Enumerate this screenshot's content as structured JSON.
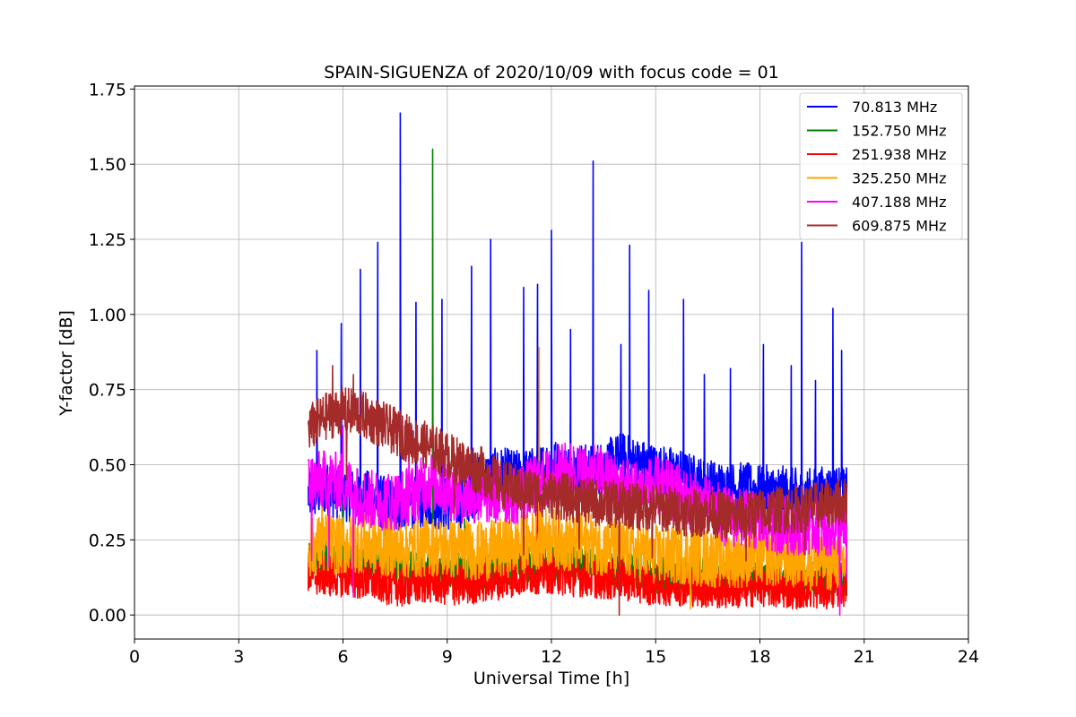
{
  "chart_data": {
    "type": "line",
    "title": "SPAIN-SIGUENZA of 2020/10/09 with focus code = 01",
    "xlabel": "Universal Time [h]",
    "ylabel": "Y-factor [dB]",
    "xlim": [
      0,
      24
    ],
    "ylim": [
      -0.08,
      1.76
    ],
    "x_ticks": [
      "0",
      "3",
      "6",
      "9",
      "12",
      "15",
      "18",
      "21",
      "24"
    ],
    "y_ticks": [
      "0.00",
      "0.25",
      "0.50",
      "0.75",
      "1.00",
      "1.25",
      "1.50",
      "1.75"
    ],
    "grid": true,
    "legend_position": "top-right",
    "series": [
      {
        "name": " 70.813 MHz",
        "color": "#0000ff",
        "x": [
          5.0,
          5.5,
          6.0,
          6.5,
          7.0,
          7.5,
          8.0,
          8.5,
          9.0,
          9.5,
          10.0,
          10.5,
          11.0,
          11.5,
          12.0,
          12.5,
          13.0,
          13.5,
          14.0,
          14.5,
          15.0,
          15.5,
          16.0,
          16.5,
          17.0,
          17.5,
          18.0,
          18.5,
          19.0,
          19.5,
          20.0,
          20.5
        ],
        "y": [
          0.4,
          0.42,
          0.4,
          0.4,
          0.38,
          0.36,
          0.37,
          0.38,
          0.37,
          0.38,
          0.45,
          0.47,
          0.46,
          0.47,
          0.5,
          0.48,
          0.48,
          0.49,
          0.52,
          0.5,
          0.48,
          0.47,
          0.45,
          0.43,
          0.42,
          0.42,
          0.41,
          0.41,
          0.4,
          0.4,
          0.41,
          0.4
        ],
        "peaks": [
          [
            5.25,
            0.88
          ],
          [
            5.95,
            0.97
          ],
          [
            6.5,
            1.15
          ],
          [
            7.0,
            1.24
          ],
          [
            7.65,
            1.67
          ],
          [
            8.1,
            1.04
          ],
          [
            8.85,
            1.05
          ],
          [
            9.7,
            1.16
          ],
          [
            10.25,
            1.25
          ],
          [
            11.2,
            1.09
          ],
          [
            11.6,
            1.1
          ],
          [
            12.0,
            1.28
          ],
          [
            12.55,
            0.95
          ],
          [
            13.2,
            1.51
          ],
          [
            14.0,
            0.9
          ],
          [
            14.25,
            1.23
          ],
          [
            14.8,
            1.08
          ],
          [
            15.8,
            1.05
          ],
          [
            16.4,
            0.8
          ],
          [
            17.15,
            0.82
          ],
          [
            18.1,
            0.9
          ],
          [
            18.9,
            0.83
          ],
          [
            19.2,
            1.24
          ],
          [
            19.6,
            0.78
          ],
          [
            20.1,
            1.02
          ],
          [
            20.35,
            0.88
          ]
        ]
      },
      {
        "name": "152.750 MHz",
        "color": "#008000",
        "x": [
          5.0,
          5.5,
          6.0,
          6.5,
          7.0,
          7.5,
          8.0,
          8.5,
          9.0,
          9.5,
          10.0,
          10.5,
          11.0,
          11.5,
          12.0,
          12.5,
          13.0,
          13.5,
          14.0,
          14.5,
          15.0,
          15.5,
          16.0,
          16.5,
          17.0,
          17.5,
          18.0,
          18.5,
          19.0,
          19.5,
          20.0,
          20.5
        ],
        "y": [
          0.2,
          0.19,
          0.19,
          0.18,
          0.17,
          0.16,
          0.15,
          0.16,
          0.15,
          0.15,
          0.15,
          0.15,
          0.16,
          0.17,
          0.18,
          0.17,
          0.16,
          0.15,
          0.15,
          0.14,
          0.13,
          0.14,
          0.13,
          0.13,
          0.12,
          0.12,
          0.13,
          0.12,
          0.12,
          0.12,
          0.12,
          0.12
        ],
        "peaks": [
          [
            8.58,
            1.55
          ],
          [
            5.1,
            0.35
          ],
          [
            6.0,
            0.38
          ],
          [
            7.2,
            0.34
          ],
          [
            9.5,
            0.32
          ]
        ]
      },
      {
        "name": "251.938 MHz",
        "color": "#ff0000",
        "x": [
          5.0,
          5.5,
          6.0,
          6.5,
          7.0,
          7.5,
          8.0,
          8.5,
          9.0,
          9.5,
          10.0,
          10.5,
          11.0,
          11.5,
          12.0,
          12.5,
          13.0,
          13.5,
          14.0,
          14.5,
          15.0,
          15.5,
          16.0,
          16.5,
          17.0,
          17.5,
          18.0,
          18.5,
          19.0,
          19.5,
          20.0,
          20.5
        ],
        "y": [
          0.14,
          0.13,
          0.13,
          0.12,
          0.11,
          0.1,
          0.1,
          0.11,
          0.1,
          0.1,
          0.11,
          0.12,
          0.13,
          0.14,
          0.14,
          0.13,
          0.13,
          0.12,
          0.12,
          0.11,
          0.1,
          0.1,
          0.1,
          0.09,
          0.09,
          0.09,
          0.1,
          0.09,
          0.09,
          0.09,
          0.09,
          0.1
        ],
        "peaks": [
          [
            5.0,
            0.08
          ],
          [
            7.7,
            0.03
          ],
          [
            11.6,
            0.4
          ],
          [
            12.2,
            0.33
          ],
          [
            17.6,
            0.05
          ]
        ]
      },
      {
        "name": "325.250 MHz",
        "color": "#ffa500",
        "x": [
          5.0,
          5.5,
          6.0,
          6.5,
          7.0,
          7.5,
          8.0,
          8.5,
          9.0,
          9.5,
          10.0,
          10.5,
          11.0,
          11.5,
          12.0,
          12.5,
          13.0,
          13.5,
          14.0,
          14.5,
          15.0,
          15.5,
          16.0,
          16.5,
          17.0,
          17.5,
          18.0,
          18.5,
          19.0,
          19.5,
          20.0,
          20.5
        ],
        "y": [
          0.22,
          0.24,
          0.23,
          0.24,
          0.23,
          0.22,
          0.22,
          0.23,
          0.22,
          0.22,
          0.21,
          0.22,
          0.23,
          0.25,
          0.26,
          0.24,
          0.24,
          0.23,
          0.22,
          0.21,
          0.2,
          0.2,
          0.2,
          0.19,
          0.19,
          0.19,
          0.2,
          0.19,
          0.19,
          0.18,
          0.18,
          0.18
        ],
        "peaks": [
          [
            11.65,
            0.89
          ],
          [
            5.4,
            0.44
          ],
          [
            13.0,
            0.38
          ],
          [
            16.0,
            0.02
          ]
        ]
      },
      {
        "name": "407.188 MHz",
        "color": "#ff00ff",
        "x": [
          5.0,
          5.5,
          6.0,
          6.5,
          7.0,
          7.5,
          8.0,
          8.5,
          9.0,
          9.5,
          10.0,
          10.5,
          11.0,
          11.5,
          12.0,
          12.5,
          13.0,
          13.5,
          14.0,
          14.5,
          15.0,
          15.5,
          16.0,
          16.5,
          17.0,
          17.5,
          18.0,
          18.5,
          19.0,
          19.5,
          20.0,
          20.5
        ],
        "y": [
          0.44,
          0.45,
          0.44,
          0.39,
          0.38,
          0.38,
          0.4,
          0.45,
          0.42,
          0.4,
          0.4,
          0.4,
          0.4,
          0.43,
          0.46,
          0.48,
          0.47,
          0.46,
          0.43,
          0.42,
          0.43,
          0.41,
          0.38,
          0.36,
          0.33,
          0.32,
          0.31,
          0.3,
          0.3,
          0.3,
          0.29,
          0.3
        ],
        "peaks": [
          [
            5.1,
            0.18
          ],
          [
            5.6,
            0.16
          ],
          [
            6.3,
            0.06
          ],
          [
            6.0,
            0.63
          ],
          [
            7.9,
            0.58
          ],
          [
            20.3,
            0.0
          ],
          [
            20.5,
            0.12
          ]
        ]
      },
      {
        "name": "609.875 MHz",
        "color": "#a52a2a",
        "x": [
          5.0,
          5.5,
          6.0,
          6.5,
          7.0,
          7.5,
          8.0,
          8.5,
          9.0,
          9.5,
          10.0,
          10.5,
          11.0,
          11.5,
          12.0,
          12.5,
          13.0,
          13.5,
          14.0,
          14.5,
          15.0,
          15.5,
          16.0,
          16.5,
          17.0,
          17.5,
          18.0,
          18.5,
          19.0,
          19.5,
          20.0,
          20.5
        ],
        "y": [
          0.62,
          0.66,
          0.68,
          0.67,
          0.64,
          0.61,
          0.58,
          0.56,
          0.53,
          0.5,
          0.48,
          0.44,
          0.42,
          0.41,
          0.4,
          0.39,
          0.38,
          0.37,
          0.37,
          0.36,
          0.36,
          0.35,
          0.34,
          0.34,
          0.33,
          0.33,
          0.34,
          0.35,
          0.35,
          0.36,
          0.37,
          0.38
        ],
        "peaks": [
          [
            5.7,
            0.83
          ],
          [
            6.3,
            0.8
          ],
          [
            13.95,
            0.0
          ],
          [
            6.1,
            0.45
          ],
          [
            9.2,
            0.34
          ],
          [
            11.2,
            0.2
          ],
          [
            12.8,
            0.22
          ],
          [
            14.9,
            0.19
          ],
          [
            17.6,
            0.18
          ],
          [
            19.3,
            0.2
          ]
        ]
      }
    ]
  }
}
